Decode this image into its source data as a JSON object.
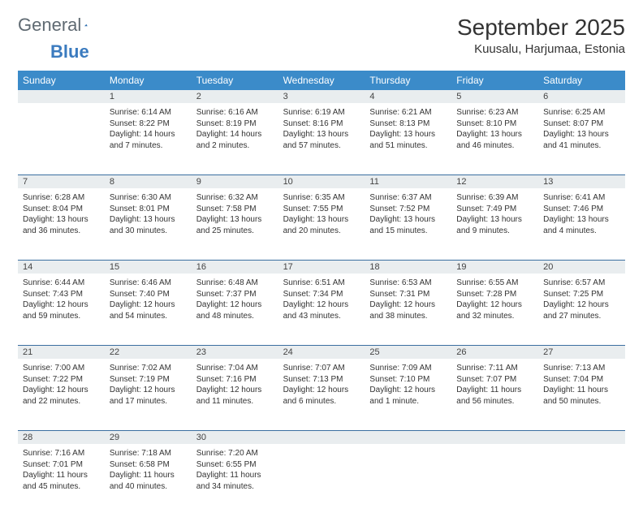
{
  "logo": {
    "text1": "General",
    "text2": "Blue",
    "triangle_color": "#2f6fb0"
  },
  "title": "September 2025",
  "location": "Kuusalu, Harjumaa, Estonia",
  "header_bg": "#3b8bc9",
  "daynum_bg": "#e9edef",
  "week_border": "#3b6fa0",
  "dow": [
    "Sunday",
    "Monday",
    "Tuesday",
    "Wednesday",
    "Thursday",
    "Friday",
    "Saturday"
  ],
  "weeks": [
    [
      null,
      {
        "n": "1",
        "sr": "Sunrise: 6:14 AM",
        "ss": "Sunset: 8:22 PM",
        "dl": "Daylight: 14 hours and 7 minutes."
      },
      {
        "n": "2",
        "sr": "Sunrise: 6:16 AM",
        "ss": "Sunset: 8:19 PM",
        "dl": "Daylight: 14 hours and 2 minutes."
      },
      {
        "n": "3",
        "sr": "Sunrise: 6:19 AM",
        "ss": "Sunset: 8:16 PM",
        "dl": "Daylight: 13 hours and 57 minutes."
      },
      {
        "n": "4",
        "sr": "Sunrise: 6:21 AM",
        "ss": "Sunset: 8:13 PM",
        "dl": "Daylight: 13 hours and 51 minutes."
      },
      {
        "n": "5",
        "sr": "Sunrise: 6:23 AM",
        "ss": "Sunset: 8:10 PM",
        "dl": "Daylight: 13 hours and 46 minutes."
      },
      {
        "n": "6",
        "sr": "Sunrise: 6:25 AM",
        "ss": "Sunset: 8:07 PM",
        "dl": "Daylight: 13 hours and 41 minutes."
      }
    ],
    [
      {
        "n": "7",
        "sr": "Sunrise: 6:28 AM",
        "ss": "Sunset: 8:04 PM",
        "dl": "Daylight: 13 hours and 36 minutes."
      },
      {
        "n": "8",
        "sr": "Sunrise: 6:30 AM",
        "ss": "Sunset: 8:01 PM",
        "dl": "Daylight: 13 hours and 30 minutes."
      },
      {
        "n": "9",
        "sr": "Sunrise: 6:32 AM",
        "ss": "Sunset: 7:58 PM",
        "dl": "Daylight: 13 hours and 25 minutes."
      },
      {
        "n": "10",
        "sr": "Sunrise: 6:35 AM",
        "ss": "Sunset: 7:55 PM",
        "dl": "Daylight: 13 hours and 20 minutes."
      },
      {
        "n": "11",
        "sr": "Sunrise: 6:37 AM",
        "ss": "Sunset: 7:52 PM",
        "dl": "Daylight: 13 hours and 15 minutes."
      },
      {
        "n": "12",
        "sr": "Sunrise: 6:39 AM",
        "ss": "Sunset: 7:49 PM",
        "dl": "Daylight: 13 hours and 9 minutes."
      },
      {
        "n": "13",
        "sr": "Sunrise: 6:41 AM",
        "ss": "Sunset: 7:46 PM",
        "dl": "Daylight: 13 hours and 4 minutes."
      }
    ],
    [
      {
        "n": "14",
        "sr": "Sunrise: 6:44 AM",
        "ss": "Sunset: 7:43 PM",
        "dl": "Daylight: 12 hours and 59 minutes."
      },
      {
        "n": "15",
        "sr": "Sunrise: 6:46 AM",
        "ss": "Sunset: 7:40 PM",
        "dl": "Daylight: 12 hours and 54 minutes."
      },
      {
        "n": "16",
        "sr": "Sunrise: 6:48 AM",
        "ss": "Sunset: 7:37 PM",
        "dl": "Daylight: 12 hours and 48 minutes."
      },
      {
        "n": "17",
        "sr": "Sunrise: 6:51 AM",
        "ss": "Sunset: 7:34 PM",
        "dl": "Daylight: 12 hours and 43 minutes."
      },
      {
        "n": "18",
        "sr": "Sunrise: 6:53 AM",
        "ss": "Sunset: 7:31 PM",
        "dl": "Daylight: 12 hours and 38 minutes."
      },
      {
        "n": "19",
        "sr": "Sunrise: 6:55 AM",
        "ss": "Sunset: 7:28 PM",
        "dl": "Daylight: 12 hours and 32 minutes."
      },
      {
        "n": "20",
        "sr": "Sunrise: 6:57 AM",
        "ss": "Sunset: 7:25 PM",
        "dl": "Daylight: 12 hours and 27 minutes."
      }
    ],
    [
      {
        "n": "21",
        "sr": "Sunrise: 7:00 AM",
        "ss": "Sunset: 7:22 PM",
        "dl": "Daylight: 12 hours and 22 minutes."
      },
      {
        "n": "22",
        "sr": "Sunrise: 7:02 AM",
        "ss": "Sunset: 7:19 PM",
        "dl": "Daylight: 12 hours and 17 minutes."
      },
      {
        "n": "23",
        "sr": "Sunrise: 7:04 AM",
        "ss": "Sunset: 7:16 PM",
        "dl": "Daylight: 12 hours and 11 minutes."
      },
      {
        "n": "24",
        "sr": "Sunrise: 7:07 AM",
        "ss": "Sunset: 7:13 PM",
        "dl": "Daylight: 12 hours and 6 minutes."
      },
      {
        "n": "25",
        "sr": "Sunrise: 7:09 AM",
        "ss": "Sunset: 7:10 PM",
        "dl": "Daylight: 12 hours and 1 minute."
      },
      {
        "n": "26",
        "sr": "Sunrise: 7:11 AM",
        "ss": "Sunset: 7:07 PM",
        "dl": "Daylight: 11 hours and 56 minutes."
      },
      {
        "n": "27",
        "sr": "Sunrise: 7:13 AM",
        "ss": "Sunset: 7:04 PM",
        "dl": "Daylight: 11 hours and 50 minutes."
      }
    ],
    [
      {
        "n": "28",
        "sr": "Sunrise: 7:16 AM",
        "ss": "Sunset: 7:01 PM",
        "dl": "Daylight: 11 hours and 45 minutes."
      },
      {
        "n": "29",
        "sr": "Sunrise: 7:18 AM",
        "ss": "Sunset: 6:58 PM",
        "dl": "Daylight: 11 hours and 40 minutes."
      },
      {
        "n": "30",
        "sr": "Sunrise: 7:20 AM",
        "ss": "Sunset: 6:55 PM",
        "dl": "Daylight: 11 hours and 34 minutes."
      },
      null,
      null,
      null,
      null
    ]
  ]
}
